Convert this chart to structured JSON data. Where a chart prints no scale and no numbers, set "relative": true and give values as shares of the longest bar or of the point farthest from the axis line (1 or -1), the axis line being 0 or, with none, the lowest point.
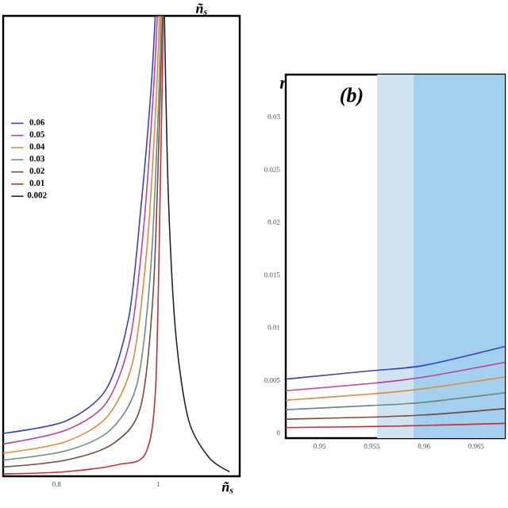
{
  "chart_data": [
    {
      "type": "line",
      "relative": true,
      "xlabel": "ñ$_{s}$",
      "annotations": [
        "ñ$_{s}$"
      ],
      "xlim": [
        0.695,
        1.16
      ],
      "xticks": [
        0.8,
        1
      ],
      "legend": "top left",
      "series": [
        {
          "name": "0.06",
          "color": "#3a3fc0",
          "x": [
            0.695,
            0.818,
            0.898,
            0.942,
            0.966,
            0.985,
            0.994
          ],
          "values": [
            0.093,
            0.12,
            0.19,
            0.345,
            0.586,
            0.83,
            1
          ]
        },
        {
          "name": "0.05",
          "color": "#c0409a",
          "x": [
            0.695,
            0.818,
            0.898,
            0.945,
            0.972,
            0.99,
            0.998
          ],
          "values": [
            0.07,
            0.1,
            0.16,
            0.3,
            0.55,
            0.83,
            1
          ]
        },
        {
          "name": "0.04",
          "color": "#e08a3a",
          "x": [
            0.695,
            0.818,
            0.9,
            0.95,
            0.978,
            0.995,
            1.002
          ],
          "values": [
            0.05,
            0.075,
            0.13,
            0.25,
            0.5,
            0.8,
            1
          ]
        },
        {
          "name": "0.03",
          "color": "#6f8a80",
          "x": [
            0.695,
            0.818,
            0.905,
            0.958,
            0.985,
            1.0,
            1.005
          ],
          "values": [
            0.035,
            0.055,
            0.1,
            0.2,
            0.45,
            0.8,
            1
          ]
        },
        {
          "name": "0.02",
          "color": "#7a4a3a",
          "x": [
            0.695,
            0.818,
            0.91,
            0.965,
            0.99,
            1.003,
            1.008
          ],
          "values": [
            0.02,
            0.035,
            0.07,
            0.15,
            0.4,
            0.8,
            1
          ]
        },
        {
          "name": "0.01",
          "color": "#c0303a",
          "x": [
            0.695,
            0.818,
            0.92,
            0.975,
            0.995,
            1.005,
            1.01
          ],
          "values": [
            0.005,
            0.01,
            0.025,
            0.05,
            0.2,
            0.7,
            1
          ]
        },
        {
          "name": "0.002",
          "color": "#222222",
          "x": [
            1.012,
            1.02,
            1.035,
            1.06,
            1.1,
            1.14
          ],
          "values": [
            1,
            0.6,
            0.3,
            0.12,
            0.04,
            0.01
          ]
        }
      ]
    },
    {
      "type": "line",
      "ylabel": "r",
      "annotations": [
        "(b)"
      ],
      "xlim": [
        0.94675,
        0.96775
      ],
      "ylim": [
        -0.0005,
        0.034
      ],
      "xticks": [
        0.95,
        0.955,
        0.96,
        0.965
      ],
      "yticks": [
        0,
        0.005,
        0.01,
        0.015,
        0.02,
        0.025,
        0.03
      ],
      "bands": [
        {
          "axis": "x",
          "from": 0.9555,
          "to": 0.96775,
          "color": "#cfe3f3"
        },
        {
          "axis": "x",
          "from": 0.959,
          "to": 0.96775,
          "color": "#a3d0ee"
        }
      ],
      "x": [
        0.94675,
        0.955,
        0.96,
        0.96775
      ],
      "series": [
        {
          "color": "#3a3fc0",
          "values": [
            0.0051,
            0.0059,
            0.0064,
            0.0082
          ]
        },
        {
          "color": "#c0409a",
          "values": [
            0.004,
            0.0047,
            0.0053,
            0.0067
          ]
        },
        {
          "color": "#e08a3a",
          "values": [
            0.0031,
            0.0037,
            0.0042,
            0.0053
          ]
        },
        {
          "color": "#6f8a80",
          "values": [
            0.0022,
            0.0026,
            0.0029,
            0.0038
          ]
        },
        {
          "color": "#7a4a3a",
          "values": [
            0.0013,
            0.0015,
            0.0017,
            0.0023
          ]
        },
        {
          "color": "#c0303a",
          "values": [
            0.0005,
            0.0006,
            0.0007,
            0.0009
          ]
        }
      ]
    }
  ]
}
